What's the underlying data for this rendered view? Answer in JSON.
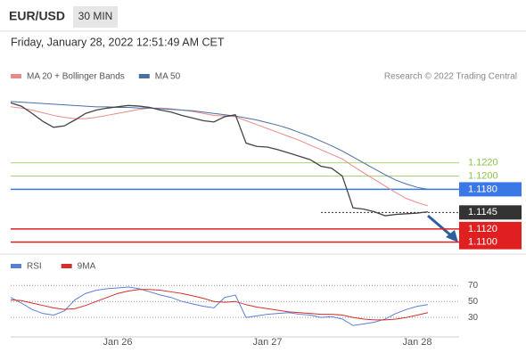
{
  "header": {
    "symbol": "EUR/USD",
    "interval": "30 MIN",
    "datetime": "Friday, January 28, 2022 12:51:49 AM CET"
  },
  "chart_data": [
    {
      "type": "line",
      "source": "Research © 2022 Trading Central",
      "ylim": [
        1.1082,
        1.1325
      ],
      "color": "#444444",
      "values": [
        1.1311,
        1.1306,
        1.1295,
        1.1283,
        1.1274,
        1.1276,
        1.1285,
        1.1295,
        1.13,
        1.1303,
        1.1305,
        1.1307,
        1.1306,
        1.1304,
        1.13,
        1.1297,
        1.1292,
        1.1288,
        1.1284,
        1.1282,
        1.129,
        1.1293,
        1.125,
        1.1245,
        1.1244,
        1.124,
        1.1235,
        1.123,
        1.1225,
        1.1215,
        1.1212,
        1.12,
        1.1152,
        1.115,
        1.1146,
        1.114,
        1.1142,
        1.1143,
        1.1144,
        1.1146
      ],
      "series": [
        {
          "name": "MA 20 + Bollinger Bands",
          "color": "#e88a8a",
          "values": [
            1.1305,
            1.1303,
            1.13,
            1.1296,
            1.1292,
            1.1289,
            1.1287,
            1.1287,
            1.1289,
            1.1292,
            1.1295,
            1.1298,
            1.1301,
            1.1303,
            1.1303,
            1.1302,
            1.13,
            1.1298,
            1.1295,
            1.1292,
            1.1291,
            1.129,
            1.1284,
            1.1278,
            1.1272,
            1.1266,
            1.126,
            1.1254,
            1.1247,
            1.124,
            1.1233,
            1.1226,
            1.1215,
            1.1205,
            1.1195,
            1.1185,
            1.1175,
            1.1166,
            1.116,
            1.1155
          ]
        },
        {
          "name": "MA 50",
          "color": "#4a6fa5",
          "values": [
            1.1313,
            1.1312,
            1.1311,
            1.131,
            1.1309,
            1.1308,
            1.1307,
            1.1306,
            1.1305,
            1.1305,
            1.1304,
            1.1304,
            1.1303,
            1.1303,
            1.1302,
            1.1301,
            1.13,
            1.1299,
            1.1297,
            1.1295,
            1.1293,
            1.1291,
            1.1288,
            1.1285,
            1.1281,
            1.1277,
            1.1272,
            1.1266,
            1.126,
            1.1253,
            1.1246,
            1.1238,
            1.1229,
            1.122,
            1.1211,
            1.1202,
            1.1194,
            1.1188,
            1.1183,
            1.118
          ]
        }
      ],
      "levels": [
        {
          "value": 1.122,
          "label": "1.1220",
          "color": "#8bc34a"
        },
        {
          "value": 1.12,
          "label": "1.1200",
          "color": "#8bc34a"
        },
        {
          "value": 1.118,
          "label": "1.1180",
          "color": "#3b78e7"
        },
        {
          "value": 1.1145,
          "label": "1.1145",
          "color": "#333333"
        },
        {
          "value": 1.112,
          "label": "1.1120",
          "color": "#e02020"
        },
        {
          "value": 1.11,
          "label": "1.1100",
          "color": "#e02020"
        }
      ]
    },
    {
      "type": "line",
      "ylim": [
        9,
        87
      ],
      "yticks": [
        70,
        50,
        30
      ],
      "categories": [
        null,
        null,
        null,
        null,
        null,
        null,
        null,
        null,
        null,
        null,
        "Jan 26",
        null,
        null,
        null,
        null,
        null,
        null,
        null,
        null,
        null,
        null,
        null,
        null,
        null,
        "Jan 27",
        null,
        null,
        null,
        null,
        null,
        null,
        null,
        null,
        null,
        null,
        null,
        null,
        null,
        "Jan 28",
        null
      ],
      "series": [
        {
          "name": "RSI",
          "color": "#5b7fd6",
          "values": [
            55,
            48,
            40,
            35,
            33,
            38,
            52,
            60,
            64,
            66,
            67,
            68,
            66,
            62,
            58,
            55,
            50,
            47,
            44,
            42,
            55,
            58,
            30,
            32,
            34,
            35,
            36,
            34,
            33,
            30,
            31,
            28,
            20,
            22,
            24,
            28,
            35,
            40,
            44,
            46
          ]
        },
        {
          "name": "9MA",
          "color": "#d32f2f",
          "values": [
            52,
            51,
            48,
            45,
            42,
            40,
            41,
            45,
            50,
            55,
            60,
            63,
            65,
            65,
            64,
            62,
            60,
            57,
            54,
            50,
            49,
            50,
            46,
            43,
            41,
            39,
            37,
            36,
            35,
            34,
            34,
            33,
            30,
            28,
            27,
            27,
            28,
            30,
            33,
            36
          ]
        }
      ]
    }
  ]
}
